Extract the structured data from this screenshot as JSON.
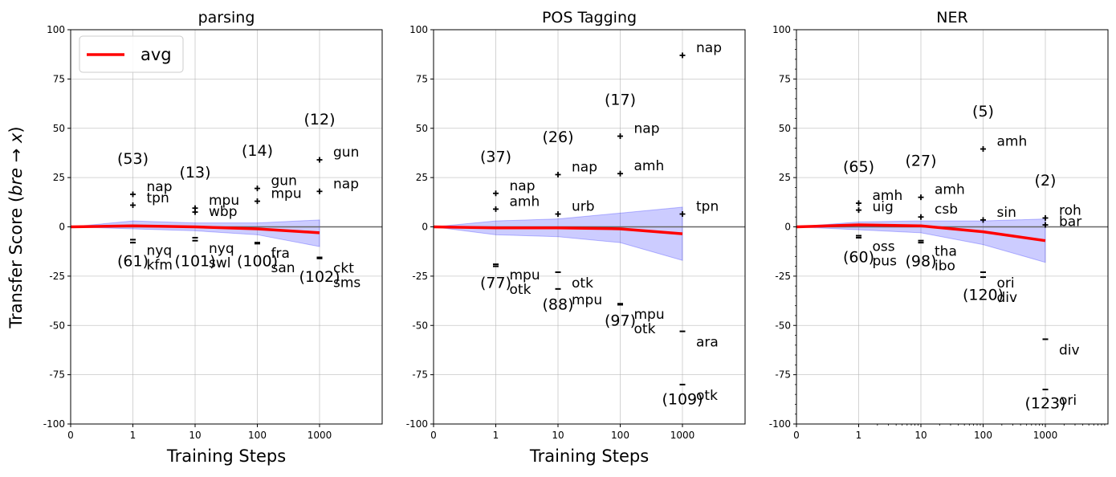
{
  "figure": {
    "ylabel": "Transfer Score ($bre → x$)",
    "ylabel_parts": [
      "Transfer Score (",
      "bre",
      " → ",
      "x",
      ")"
    ],
    "legend_label": "avg",
    "colors": {
      "avg_line": "#ff0000",
      "band_fill": "#0000ff",
      "band_edge": "#0000ff",
      "zero_line": "#666666",
      "grid": "#b0b0b0",
      "marker": "#000000"
    }
  },
  "chart_data": [
    {
      "type": "line",
      "title": "parsing",
      "xlabel": "Training Steps",
      "ylim": [
        -100,
        100
      ],
      "yticks": [
        -100,
        -75,
        -50,
        -25,
        0,
        25,
        50,
        75,
        100
      ],
      "xtick_labels": [
        "0",
        "1",
        "10",
        "100",
        "1000"
      ],
      "avg": {
        "name": "avg",
        "x": [
          0,
          1,
          10,
          100,
          1000
        ],
        "y": [
          0,
          0.5,
          0,
          -1,
          -3
        ]
      },
      "band": {
        "lower": [
          0,
          -1,
          -2,
          -4,
          -10
        ],
        "upper": [
          0,
          3,
          2,
          2,
          3.5
        ]
      },
      "points": [
        {
          "step": 1,
          "value": 16.5,
          "label": "nap"
        },
        {
          "step": 1,
          "value": 11,
          "label": "tpn"
        },
        {
          "step": 1,
          "value": -6.5,
          "label": "nyq"
        },
        {
          "step": 1,
          "value": -8,
          "label": "kfm"
        },
        {
          "step": 10,
          "value": 9.5,
          "label": "mpu"
        },
        {
          "step": 10,
          "value": 7.5,
          "label": "wbp"
        },
        {
          "step": 10,
          "value": -5.5,
          "label": "nyq"
        },
        {
          "step": 10,
          "value": -7,
          "label": "swl"
        },
        {
          "step": 100,
          "value": 19.5,
          "label": "gun"
        },
        {
          "step": 100,
          "value": 13,
          "label": "mpu"
        },
        {
          "step": 100,
          "value": -8,
          "label": "fra"
        },
        {
          "step": 100,
          "value": -8.5,
          "label": "san"
        },
        {
          "step": 1000,
          "value": 34,
          "label": "gun"
        },
        {
          "step": 1000,
          "value": 18,
          "label": "nap"
        },
        {
          "step": 1000,
          "value": -15.5,
          "label": "ckt"
        },
        {
          "step": 1000,
          "value": -16,
          "label": "sms"
        }
      ],
      "counts": [
        {
          "step": 1,
          "pos": "(53)",
          "neg": "(61)",
          "pos_y": 32,
          "neg_y": -20
        },
        {
          "step": 10,
          "pos": "(13)",
          "neg": "(101)",
          "pos_y": 25,
          "neg_y": -20
        },
        {
          "step": 100,
          "pos": "(14)",
          "neg": "(100)",
          "pos_y": 36,
          "neg_y": -20
        },
        {
          "step": 1000,
          "pos": "(12)",
          "neg": "(102)",
          "pos_y": 52,
          "neg_y": -28
        }
      ]
    },
    {
      "type": "line",
      "title": "POS Tagging",
      "xlabel": "Training Steps",
      "ylim": [
        -100,
        100
      ],
      "yticks": [
        -100,
        -75,
        -50,
        -25,
        0,
        25,
        50,
        75,
        100
      ],
      "xtick_labels": [
        "0",
        "1",
        "10",
        "100",
        "1000"
      ],
      "avg": {
        "name": "avg",
        "x": [
          0,
          1,
          10,
          100,
          1000
        ],
        "y": [
          0,
          -0.5,
          -0.5,
          -1,
          -3.5
        ]
      },
      "band": {
        "lower": [
          0,
          -4,
          -5,
          -8,
          -17
        ],
        "upper": [
          0,
          3,
          4,
          7,
          10
        ]
      },
      "points": [
        {
          "step": 1,
          "value": 17,
          "label": "nap"
        },
        {
          "step": 1,
          "value": 9,
          "label": "amh"
        },
        {
          "step": 1,
          "value": -19,
          "label": "mpu"
        },
        {
          "step": 1,
          "value": -20,
          "label": "otk"
        },
        {
          "step": 10,
          "value": 26.5,
          "label": "nap"
        },
        {
          "step": 10,
          "value": 6.5,
          "label": "urb"
        },
        {
          "step": 10,
          "value": -23,
          "label": "otk"
        },
        {
          "step": 10,
          "value": -31.5,
          "label": "mpu"
        },
        {
          "step": 100,
          "value": 46,
          "label": "nap"
        },
        {
          "step": 100,
          "value": 27,
          "label": "amh"
        },
        {
          "step": 100,
          "value": -39,
          "label": "mpu"
        },
        {
          "step": 100,
          "value": -39.5,
          "label": "otk"
        },
        {
          "step": 1000,
          "value": 87,
          "label": "nap"
        },
        {
          "step": 1000,
          "value": 6.5,
          "label": "tpn"
        },
        {
          "step": 1000,
          "value": -53,
          "label": "ara"
        },
        {
          "step": 1000,
          "value": -80,
          "label": "otk"
        }
      ],
      "counts": [
        {
          "step": 1,
          "pos": "(37)",
          "neg": "(77)",
          "pos_y": 33,
          "neg_y": -31
        },
        {
          "step": 10,
          "pos": "(26)",
          "neg": "(88)",
          "pos_y": 43,
          "neg_y": -42
        },
        {
          "step": 100,
          "pos": "(17)",
          "neg": "(97)",
          "pos_y": 62,
          "neg_y": -50
        },
        {
          "step": 1000,
          "pos": "",
          "neg": "(109)",
          "pos_y": 90,
          "neg_y": -90
        }
      ]
    },
    {
      "type": "line",
      "title": "NER",
      "xlabel": "",
      "ylim": [
        -100,
        100
      ],
      "yticks": [
        -100,
        -75,
        -50,
        -25,
        0,
        25,
        50,
        75,
        100
      ],
      "xtick_labels": [
        "0",
        "1",
        "10",
        "100",
        "1000"
      ],
      "avg": {
        "name": "avg",
        "x": [
          0,
          1,
          10,
          100,
          1000
        ],
        "y": [
          0,
          1,
          0.5,
          -2.5,
          -7
        ]
      },
      "band": {
        "lower": [
          0,
          -1.5,
          -3,
          -9,
          -18
        ],
        "upper": [
          0,
          2.5,
          3,
          3,
          4
        ]
      },
      "points": [
        {
          "step": 1,
          "value": 12,
          "label": "amh"
        },
        {
          "step": 1,
          "value": 8.5,
          "label": "uig"
        },
        {
          "step": 1,
          "value": -4.5,
          "label": "oss"
        },
        {
          "step": 1,
          "value": -5.5,
          "label": "pus"
        },
        {
          "step": 10,
          "value": 15,
          "label": "amh"
        },
        {
          "step": 10,
          "value": 5,
          "label": "csb"
        },
        {
          "step": 10,
          "value": -7,
          "label": "tha"
        },
        {
          "step": 10,
          "value": -8,
          "label": "ibo"
        },
        {
          "step": 100,
          "value": 39.5,
          "label": "amh"
        },
        {
          "step": 100,
          "value": 3.5,
          "label": "sin"
        },
        {
          "step": 100,
          "value": -23,
          "label": "ori"
        },
        {
          "step": 100,
          "value": -25.5,
          "label": "div"
        },
        {
          "step": 1000,
          "value": 4.5,
          "label": "roh"
        },
        {
          "step": 1000,
          "value": 1,
          "label": "bar"
        },
        {
          "step": 1000,
          "value": -57,
          "label": "div"
        },
        {
          "step": 1000,
          "value": -82.5,
          "label": "ori"
        }
      ],
      "counts": [
        {
          "step": 1,
          "pos": "(65)",
          "neg": "(60)",
          "pos_y": 28,
          "neg_y": -18
        },
        {
          "step": 10,
          "pos": "(27)",
          "neg": "(98)",
          "pos_y": 31,
          "neg_y": -20
        },
        {
          "step": 100,
          "pos": "(5)",
          "neg": "(120)",
          "pos_y": 56,
          "neg_y": -37
        },
        {
          "step": 1000,
          "pos": "(2)",
          "neg": "(123)",
          "pos_y": 21,
          "neg_y": -92
        }
      ]
    }
  ]
}
